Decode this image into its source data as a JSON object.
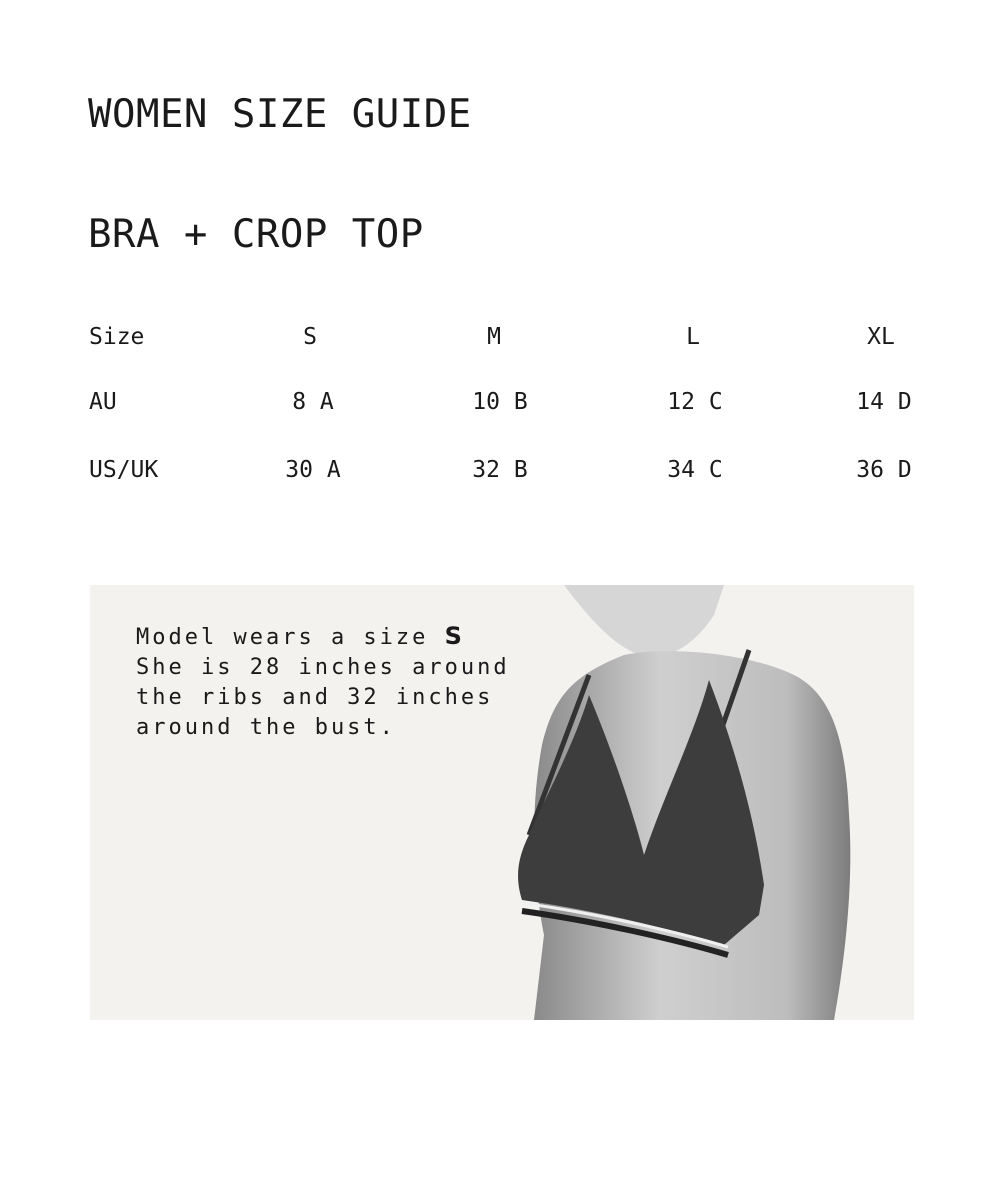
{
  "title": "WOMEN SIZE GUIDE",
  "section": "BRA + CROP TOP",
  "table": {
    "header": [
      "Size",
      "S",
      "M",
      "L",
      "XL"
    ],
    "rows": [
      [
        "AU",
        "8 A",
        "10 B",
        "12 C",
        "14 D"
      ],
      [
        "US/UK",
        "30 A",
        "32 B",
        "34 C",
        "36 D"
      ]
    ]
  },
  "model_note": {
    "line1": "Model wears a size",
    "size": "S",
    "line2": "She is 28 inches around",
    "line3": "the ribs and 32 inches",
    "line4": "around the bust."
  },
  "colors": {
    "panel_bg": "#f3f2ef",
    "text": "#1a1a1a"
  }
}
